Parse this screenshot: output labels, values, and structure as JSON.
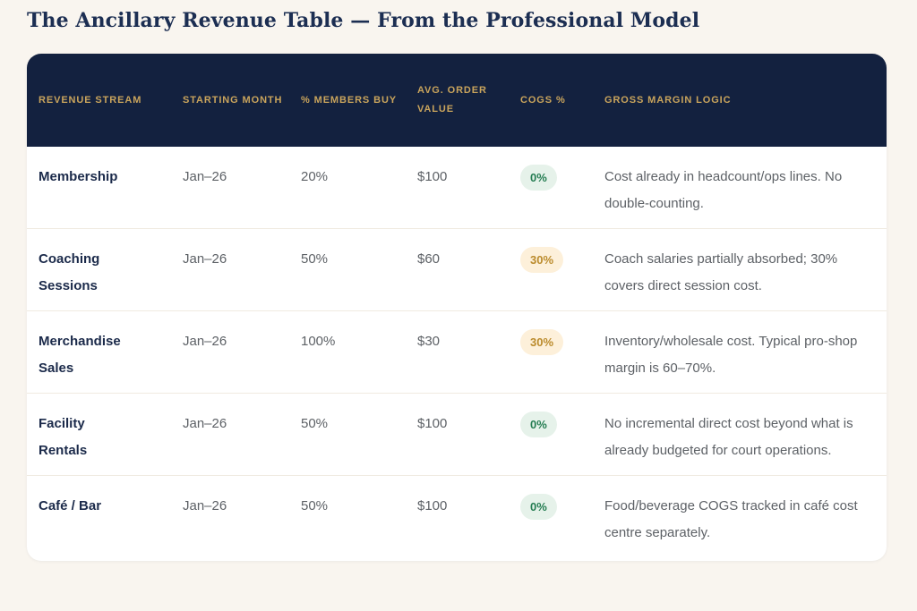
{
  "page": {
    "title": "The Ancillary Revenue Table — From the Professional Model"
  },
  "table": {
    "columns": [
      {
        "label": "Revenue Stream"
      },
      {
        "label": "Starting Month"
      },
      {
        "label": "% Members Buy"
      },
      {
        "label": "Avg. Order Value"
      },
      {
        "label": "COGS %"
      },
      {
        "label": "Gross Margin Logic"
      }
    ],
    "rows": [
      {
        "stream": "Membership",
        "starting_month": "Jan–26",
        "pct_members_buy": "20%",
        "avg_order_value": "$100",
        "cogs_pct": "0%",
        "cogs_level": "green",
        "gross_margin_logic": "Cost already in headcount/ops lines. No double-counting."
      },
      {
        "stream": "Coaching Sessions",
        "starting_month": "Jan–26",
        "pct_members_buy": "50%",
        "avg_order_value": "$60",
        "cogs_pct": "30%",
        "cogs_level": "amber",
        "gross_margin_logic": "Coach salaries partially absorbed; 30% covers direct session cost."
      },
      {
        "stream": "Merchandise Sales",
        "starting_month": "Jan–26",
        "pct_members_buy": "100%",
        "avg_order_value": "$30",
        "cogs_pct": "30%",
        "cogs_level": "amber",
        "gross_margin_logic": "Inventory/wholesale cost. Typical pro-shop margin is 60–70%."
      },
      {
        "stream": "Facility Rentals",
        "starting_month": "Jan–26",
        "pct_members_buy": "50%",
        "avg_order_value": "$100",
        "cogs_pct": "0%",
        "cogs_level": "green",
        "gross_margin_logic": "No incremental direct cost beyond what is already budgeted for court operations."
      },
      {
        "stream": "Café / Bar",
        "starting_month": "Jan–26",
        "pct_members_buy": "50%",
        "avg_order_value": "$100",
        "cogs_pct": "0%",
        "cogs_level": "green",
        "gross_margin_logic": "Food/beverage COGS tracked in café cost centre separately."
      }
    ]
  },
  "colors": {
    "page_background": "#f9f5ef",
    "card_background": "#ffffff",
    "header_background": "#13213f",
    "header_text_gold": "#c9a45c",
    "title_navy": "#1c2e52",
    "stream_navy": "#1b2a4a",
    "body_gray": "#5d6166",
    "divider": "#f0eae1",
    "badge_green_bg": "#e6f2ea",
    "badge_green_text": "#257d52",
    "badge_amber_bg": "#fdf0da",
    "badge_amber_text": "#bb8b2c"
  }
}
